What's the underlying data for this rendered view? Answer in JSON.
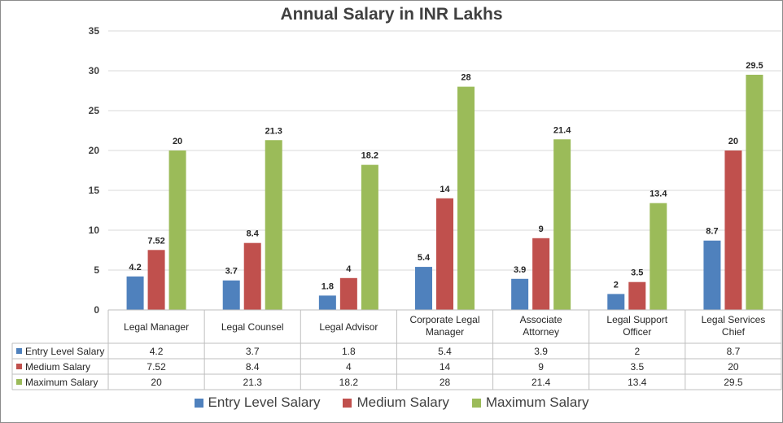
{
  "chart_data": {
    "type": "bar",
    "title": "Annual Salary in INR Lakhs",
    "categories": [
      [
        "Legal Manager"
      ],
      [
        "Legal Counsel"
      ],
      [
        "Legal Advisor"
      ],
      [
        "Corporate Legal",
        "Manager"
      ],
      [
        "Associate",
        "Attorney"
      ],
      [
        "Legal Support",
        "Officer"
      ],
      [
        "Legal Services",
        "Chief"
      ]
    ],
    "series": [
      {
        "name": "Entry Level Salary",
        "color": "#4f81bd",
        "values": [
          4.2,
          3.7,
          1.8,
          5.4,
          3.9,
          2,
          8.7
        ]
      },
      {
        "name": "Medium Salary",
        "color": "#c0504d",
        "values": [
          7.52,
          8.4,
          4,
          14,
          9,
          3.5,
          20
        ]
      },
      {
        "name": "Maximum Salary",
        "color": "#9bbb59",
        "values": [
          20,
          21.3,
          18.2,
          28,
          21.4,
          13.4,
          29.5
        ]
      }
    ],
    "ylim": [
      0,
      35
    ],
    "yticks": [
      0,
      5,
      10,
      15,
      20,
      25,
      30,
      35
    ],
    "grid": true,
    "data_table": true,
    "legend": "bottom"
  }
}
